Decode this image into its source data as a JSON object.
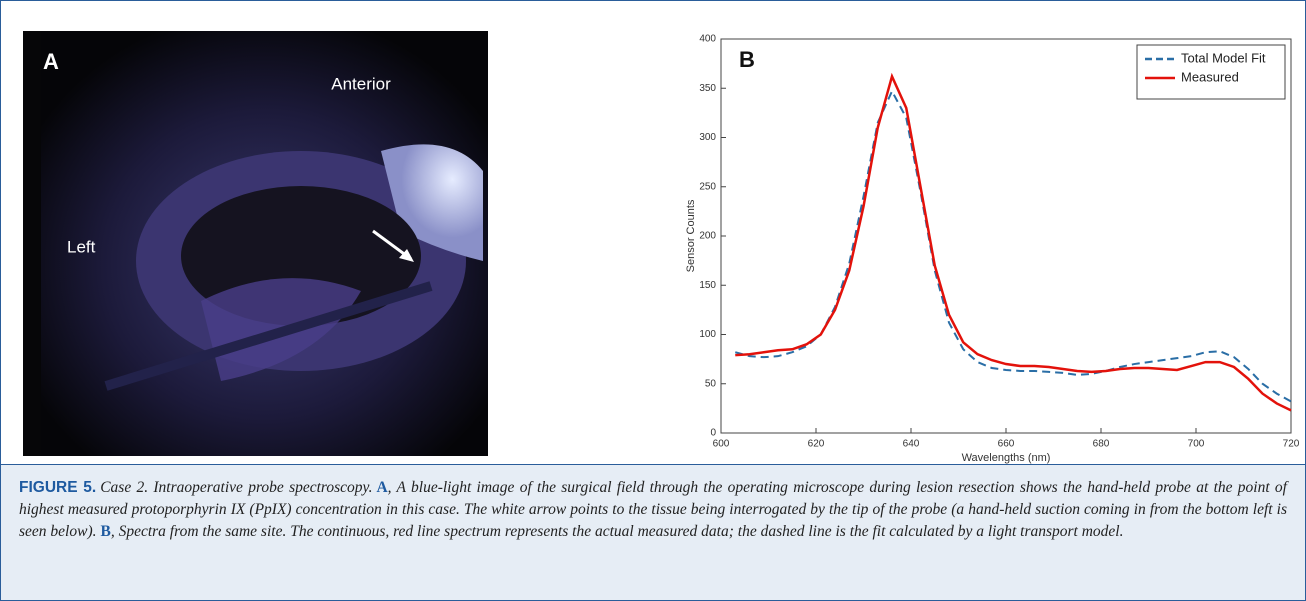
{
  "panel_a": {
    "label": "A",
    "annotations": [
      "Anterior",
      "Left"
    ]
  },
  "chart_data": {
    "type": "line",
    "panel_label": "B",
    "x_label": "Wavelengths (nm)",
    "y_label": "Sensor Counts",
    "x": [
      603,
      606,
      609,
      612,
      615,
      618,
      621,
      624,
      627,
      630,
      633,
      636,
      639,
      642,
      645,
      648,
      651,
      654,
      657,
      660,
      663,
      666,
      669,
      672,
      675,
      678,
      681,
      684,
      687,
      690,
      693,
      696,
      699,
      702,
      705,
      708,
      711,
      714,
      717,
      720
    ],
    "series": [
      {
        "name": "Total Model Fit",
        "color": "#2a6ea6",
        "dashed": true,
        "values": [
          82,
          78,
          77,
          78,
          82,
          88,
          100,
          128,
          172,
          240,
          315,
          347,
          320,
          245,
          165,
          112,
          85,
          72,
          66,
          64,
          63,
          63,
          62,
          61,
          59,
          60,
          63,
          67,
          70,
          72,
          74,
          76,
          78,
          82,
          83,
          77,
          65,
          50,
          40,
          32
        ]
      },
      {
        "name": "Measured",
        "color": "#e3120b",
        "dashed": false,
        "values": [
          79,
          80,
          82,
          84,
          85,
          90,
          100,
          125,
          165,
          230,
          310,
          362,
          330,
          250,
          170,
          120,
          92,
          80,
          74,
          70,
          68,
          68,
          67,
          65,
          63,
          62,
          63,
          65,
          66,
          66,
          65,
          64,
          68,
          72,
          72,
          67,
          55,
          40,
          30,
          23
        ]
      }
    ],
    "xlim": [
      600,
      720
    ],
    "xticks": [
      600,
      620,
      640,
      660,
      680,
      700,
      720
    ],
    "ylim": [
      0,
      400
    ],
    "yticks": [
      0,
      50,
      100,
      150,
      200,
      250,
      300,
      350,
      400
    ],
    "legend": "upper-right"
  },
  "caption": {
    "label": "FIGURE 5.",
    "segments": [
      "Case 2. Intraoperative probe spectroscopy.",
      "A",
      ", A blue-light image of the surgical field through the operating microscope during lesion resection shows the hand-held probe at the point of highest measured protoporphyrin IX (PpIX) concentration in this case. The white arrow points to the tissue being interrogated by the tip of the probe (a hand-held suction coming in from the bottom left is seen below).",
      "B",
      ", Spectra from the same site. The continuous, red line spectrum represents the actual measured data; the dashed line is the fit calculated by a light transport model."
    ]
  }
}
